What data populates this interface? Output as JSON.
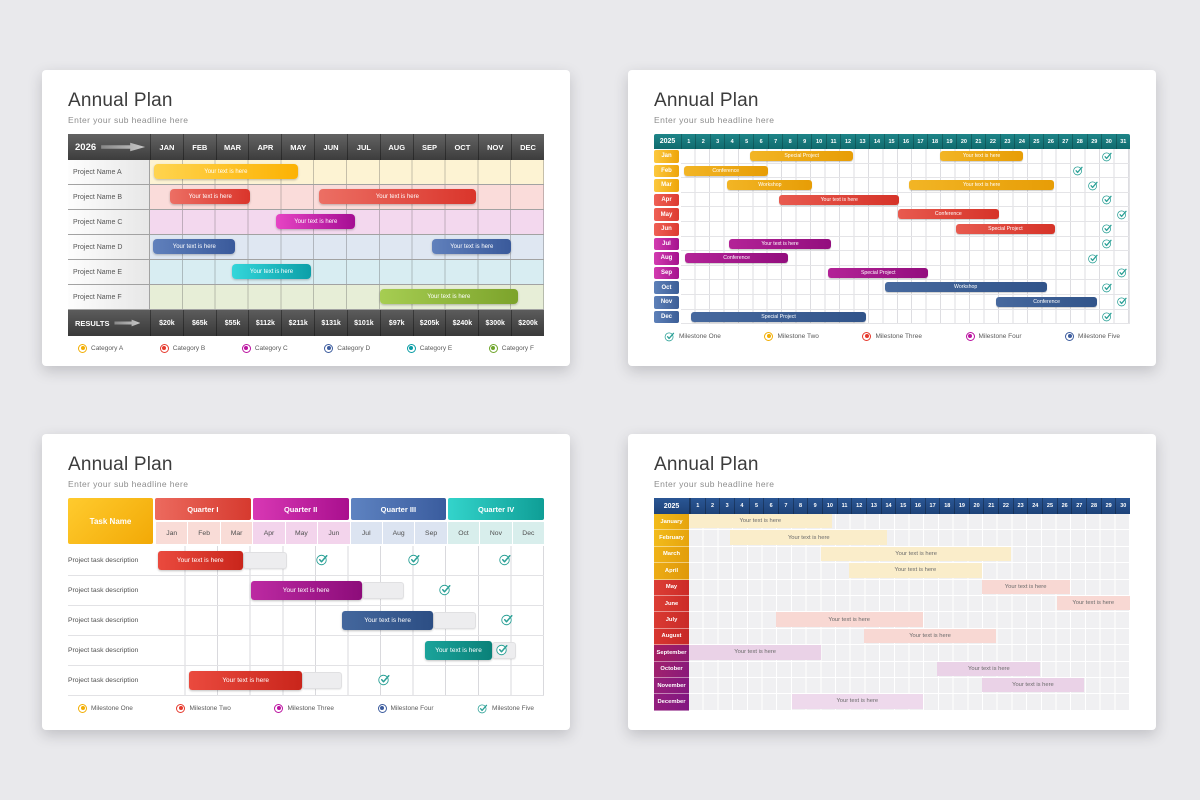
{
  "page": {
    "background": "#e9e9ec",
    "card_background": "#ffffff"
  },
  "icons": {
    "check_color": "#2aa096"
  },
  "chart_data": [
    {
      "type": "gantt",
      "variant": "monthly-projects",
      "title": "Annual Plan",
      "subtitle": "Enter your sub headline here",
      "year": "2026",
      "unit_count": 12,
      "x_units": [
        "JAN",
        "FEB",
        "MAR",
        "APR",
        "MAY",
        "JUN",
        "JUL",
        "AUG",
        "SEP",
        "OCT",
        "NOV",
        "DEC"
      ],
      "rows": [
        {
          "label": "Project Name A",
          "bg": "#fdf3d3",
          "bars": [
            {
              "text": "Your text is here",
              "start": 0.12,
              "end": 4.5,
              "c": [
                "#ffd44f",
                "#fcb203"
              ]
            }
          ]
        },
        {
          "label": "Project Name B",
          "bg": "#fadcda",
          "bars": [
            {
              "text": "Your text is here",
              "start": 0.62,
              "end": 3.05,
              "c": [
                "#ec6f64",
                "#da352b"
              ]
            },
            {
              "text": "Your text is here",
              "start": 5.15,
              "end": 9.92,
              "c": [
                "#ec6f64",
                "#da352b"
              ]
            }
          ]
        },
        {
          "label": "Project Name C",
          "bg": "#f3d8ee",
          "bars": [
            {
              "text": "Your text is here",
              "start": 3.85,
              "end": 6.25,
              "c": [
                "#e644c4",
                "#a50d93"
              ]
            }
          ]
        },
        {
          "label": "Project Name D",
          "bg": "#dfe7f2",
          "bars": [
            {
              "text": "Your text is here",
              "start": 0.1,
              "end": 2.6,
              "c": [
                "#6080bc",
                "#3a5a9b"
              ]
            },
            {
              "text": "Your text is here",
              "start": 8.6,
              "end": 11.0,
              "c": [
                "#6080bc",
                "#3a5a9b"
              ]
            }
          ]
        },
        {
          "label": "Project Name E",
          "bg": "#d8edf2",
          "bars": [
            {
              "text": "Your text is here",
              "start": 2.5,
              "end": 4.9,
              "c": [
                "#33d6da",
                "#0b9fa8"
              ]
            }
          ]
        },
        {
          "label": "Project Name F",
          "bg": "#e7eed7",
          "bars": [
            {
              "text": "Your text is here",
              "start": 7.0,
              "end": 11.2,
              "c": [
                "#a6cd52",
                "#7ca32b"
              ]
            }
          ]
        }
      ],
      "results": {
        "label": "RESULTS",
        "values": [
          "$20k",
          "$65k",
          "$55k",
          "$112k",
          "$211k",
          "$131k",
          "$101k",
          "$97k",
          "$205k",
          "$240k",
          "$300k",
          "$200k"
        ]
      },
      "legend": [
        {
          "label": "Category A",
          "icon": "dot",
          "color": "#f2ae04"
        },
        {
          "label": "Category B",
          "icon": "dot",
          "color": "#e63a2e"
        },
        {
          "label": "Category C",
          "icon": "dot",
          "color": "#bb12a0"
        },
        {
          "label": "Category D",
          "icon": "dot",
          "color": "#3c5c9e"
        },
        {
          "label": "Category E",
          "icon": "dot",
          "color": "#089ca4"
        },
        {
          "label": "Category F",
          "icon": "dot",
          "color": "#6fa52b"
        }
      ]
    },
    {
      "type": "gantt",
      "variant": "daily-31",
      "title": "Annual Plan",
      "subtitle": "Enter your sub headline here",
      "year": "2025",
      "unit_count": 31,
      "x_units": [
        "1",
        "2",
        "3",
        "4",
        "5",
        "6",
        "7",
        "8",
        "9",
        "10",
        "11",
        "12",
        "13",
        "14",
        "15",
        "16",
        "17",
        "18",
        "19",
        "20",
        "21",
        "22",
        "23",
        "24",
        "25",
        "26",
        "27",
        "28",
        "29",
        "30",
        "31"
      ],
      "rows": [
        {
          "label": "Jan",
          "lc": [
            "#fcc83e",
            "#eea50a"
          ],
          "bc": [
            "#f2b525",
            "#e79d06"
          ],
          "bars": [
            {
              "text": "Special Project",
              "start": 4.8,
              "end": 11.9
            },
            {
              "text": "Your text is here",
              "start": 17.9,
              "end": 23.7
            }
          ],
          "check_day": 30
        },
        {
          "label": "Feb",
          "lc": [
            "#fcc83e",
            "#eea50a"
          ],
          "bc": [
            "#f2b525",
            "#e79d06"
          ],
          "bars": [
            {
              "text": "Conference",
              "start": 0.2,
              "end": 6.0
            }
          ],
          "check_day": 28
        },
        {
          "label": "Mar",
          "lc": [
            "#fcc83e",
            "#eea50a"
          ],
          "bc": [
            "#f2b525",
            "#e79d06"
          ],
          "bars": [
            {
              "text": "Workshop",
              "start": 3.2,
              "end": 9.1
            },
            {
              "text": "Your text is here",
              "start": 15.8,
              "end": 25.8
            }
          ],
          "check_day": 29
        },
        {
          "label": "Apr",
          "lc": [
            "#ef6055",
            "#dd3b31"
          ],
          "bc": [
            "#e85a4f",
            "#d63328"
          ],
          "bars": [
            {
              "text": "Your text is here",
              "start": 6.8,
              "end": 15.1
            }
          ],
          "check_day": 30
        },
        {
          "label": "May",
          "lc": [
            "#ef6055",
            "#dd3b31"
          ],
          "bc": [
            "#e85a4f",
            "#d63328"
          ],
          "bars": [
            {
              "text": "Conference",
              "start": 15.0,
              "end": 22.0
            }
          ],
          "check_day": 31
        },
        {
          "label": "Jun",
          "lc": [
            "#ef6055",
            "#dd3b31"
          ],
          "bc": [
            "#e85a4f",
            "#d63328"
          ],
          "bars": [
            {
              "text": "Special Project",
              "start": 19.0,
              "end": 25.9
            }
          ],
          "check_day": 30
        },
        {
          "label": "Jul",
          "lc": [
            "#d23bb0",
            "#a5128e"
          ],
          "bc": [
            "#b32397",
            "#930e7e"
          ],
          "bars": [
            {
              "text": "Your text is here",
              "start": 3.3,
              "end": 10.4
            }
          ],
          "check_day": 30
        },
        {
          "label": "Aug",
          "lc": [
            "#d23bb0",
            "#a5128e"
          ],
          "bc": [
            "#b32397",
            "#930e7e"
          ],
          "bars": [
            {
              "text": "Conference",
              "start": 0.3,
              "end": 7.4
            }
          ],
          "check_day": 29
        },
        {
          "label": "Sep",
          "lc": [
            "#d23bb0",
            "#a5128e"
          ],
          "bc": [
            "#b32397",
            "#930e7e"
          ],
          "bars": [
            {
              "text": "Special Project",
              "start": 10.2,
              "end": 17.1
            }
          ],
          "check_day": 31
        },
        {
          "label": "Oct",
          "lc": [
            "#5d80b8",
            "#3c5e97"
          ],
          "bc": [
            "#47699e",
            "#31548a"
          ],
          "bars": [
            {
              "text": "Workshop",
              "start": 14.1,
              "end": 25.3
            }
          ],
          "check_day": 30
        },
        {
          "label": "Nov",
          "lc": [
            "#5d80b8",
            "#3c5e97"
          ],
          "bc": [
            "#47699e",
            "#31548a"
          ],
          "bars": [
            {
              "text": "Conference",
              "start": 21.8,
              "end": 28.8
            }
          ],
          "check_day": 31
        },
        {
          "label": "Dec",
          "lc": [
            "#5d80b8",
            "#3c5e97"
          ],
          "bc": [
            "#47699e",
            "#31548a"
          ],
          "bars": [
            {
              "text": "Special Project",
              "start": 0.7,
              "end": 12.8
            }
          ],
          "check_day": 30
        }
      ],
      "legend": [
        {
          "label": "Milestone One",
          "icon": "check",
          "color": "#2aa096"
        },
        {
          "label": "Milestone Two",
          "icon": "dot",
          "color": "#f2ae04"
        },
        {
          "label": "Milestone Three",
          "icon": "dot",
          "color": "#e63a2e"
        },
        {
          "label": "Milestone Four",
          "icon": "dot",
          "color": "#bb12a0"
        },
        {
          "label": "Milestone Five",
          "icon": "dot",
          "color": "#3c5c9e"
        }
      ]
    },
    {
      "type": "gantt",
      "variant": "quarterly-tasks",
      "title": "Annual Plan",
      "subtitle": "Enter your sub headline here",
      "task_col_label": "Task Name",
      "unit_count": 12,
      "quarters": [
        {
          "label": "Quarter I",
          "c": [
            "#ec6a5e",
            "#d63a2f"
          ],
          "sub_bg": "#f9dcd7",
          "months": [
            "Jan",
            "Feb",
            "Mar"
          ]
        },
        {
          "label": "Quarter II",
          "c": [
            "#d838b4",
            "#a90f8e"
          ],
          "sub_bg": "#f3d4ec",
          "months": [
            "Apr",
            "May",
            "Jun"
          ]
        },
        {
          "label": "Quarter III",
          "c": [
            "#5e83c1",
            "#3a5c9e"
          ],
          "sub_bg": "#dce4f1",
          "months": [
            "Jul",
            "Aug",
            "Sep"
          ]
        },
        {
          "label": "Quarter IV",
          "c": [
            "#33d4cb",
            "#0f9e96"
          ],
          "sub_bg": "#d8eeec",
          "months": [
            "Oct",
            "Nov",
            "Dec"
          ]
        }
      ],
      "rows": [
        {
          "label": "Project task description",
          "bar": {
            "text": "Your text is here",
            "start": 0.15,
            "end": 2.75,
            "c": [
              "#ea4a3e",
              "#c9251b"
            ]
          },
          "ghost": {
            "start": 2.75,
            "end": 4.1
          },
          "checks": [
            5.2,
            8.0,
            10.8
          ]
        },
        {
          "label": "Project task description",
          "bar": {
            "text": "Your text is here",
            "start": 3.0,
            "end": 6.4,
            "c": [
              "#bc2aa2",
              "#8d0c7a"
            ]
          },
          "ghost": {
            "start": 6.4,
            "end": 7.7
          },
          "checks": [
            8.95
          ]
        },
        {
          "label": "Project task description",
          "bar": {
            "text": "Your text is here",
            "start": 5.8,
            "end": 8.6,
            "c": [
              "#44679d",
              "#2c4e84"
            ]
          },
          "ghost": {
            "start": 8.6,
            "end": 9.9
          },
          "checks": [
            10.85
          ]
        },
        {
          "label": "Project task description",
          "bar": {
            "text": "Your text is here",
            "start": 8.35,
            "end": 10.4,
            "c": [
              "#1ba39a",
              "#0a8179"
            ]
          },
          "ghost": {
            "start": 10.4,
            "end": 11.15
          },
          "checks": [
            10.72
          ]
        },
        {
          "label": "Project task description",
          "bar": {
            "text": "Your text is here",
            "start": 1.12,
            "end": 4.57,
            "c": [
              "#ea4a3e",
              "#c9251b"
            ]
          },
          "ghost": {
            "start": 4.57,
            "end": 5.8
          },
          "checks": [
            7.1
          ]
        }
      ],
      "legend": [
        {
          "label": "Milestone One",
          "icon": "dot",
          "color": "#f2ae04"
        },
        {
          "label": "Milestone Two",
          "icon": "dot",
          "color": "#e63a2e"
        },
        {
          "label": "Milestone Three",
          "icon": "dot",
          "color": "#bb12a0"
        },
        {
          "label": "Milestone Four",
          "icon": "dot",
          "color": "#3c5c9e"
        },
        {
          "label": "Milestone Five",
          "icon": "check",
          "color": "#2aa096"
        }
      ]
    },
    {
      "type": "gantt",
      "variant": "daily-30",
      "title": "Annual Plan",
      "subtitle": "Enter your sub headline here",
      "year": "2025",
      "unit_count": 30,
      "x_units": [
        "1",
        "2",
        "3",
        "4",
        "5",
        "6",
        "7",
        "8",
        "9",
        "10",
        "11",
        "12",
        "13",
        "14",
        "15",
        "16",
        "17",
        "18",
        "19",
        "20",
        "21",
        "22",
        "23",
        "24",
        "25",
        "26",
        "27",
        "28",
        "29",
        "30"
      ],
      "rows": [
        {
          "label": "January",
          "lc": [
            "#f2bb1b",
            "#e6a40d"
          ],
          "bar": {
            "text": "Your text is here",
            "start": 0.0,
            "end": 9.7,
            "bg": "#faedca"
          }
        },
        {
          "label": "February",
          "lc": [
            "#f2bb1b",
            "#e6a40d"
          ],
          "bar": {
            "text": "Your text is here",
            "start": 2.8,
            "end": 13.5,
            "bg": "#faedca"
          }
        },
        {
          "label": "March",
          "lc": [
            "#efb217",
            "#e29e0b"
          ],
          "bar": {
            "text": "Your text is here",
            "start": 9.0,
            "end": 21.9,
            "bg": "#faedca"
          }
        },
        {
          "label": "April",
          "lc": [
            "#edac14",
            "#df9909"
          ],
          "bar": {
            "text": "Your text is here",
            "start": 10.9,
            "end": 19.9,
            "bg": "#faedca"
          }
        },
        {
          "label": "May",
          "lc": [
            "#dc3e35",
            "#cc2b28"
          ],
          "bar": {
            "text": "Your text is here",
            "start": 19.9,
            "end": 25.9,
            "bg": "#f8d8d3"
          }
        },
        {
          "label": "June",
          "lc": [
            "#dc3e35",
            "#cc2b28"
          ],
          "bar": {
            "text": "Your text is here",
            "start": 25.0,
            "end": 30.0,
            "bg": "#f8d8d3"
          }
        },
        {
          "label": "July",
          "lc": [
            "#da3a32",
            "#c92b28"
          ],
          "bar": {
            "text": "Your text is here",
            "start": 5.9,
            "end": 15.9,
            "bg": "#f8d8d3"
          }
        },
        {
          "label": "August",
          "lc": [
            "#d83630",
            "#c62927"
          ],
          "bar": {
            "text": "Your text is here",
            "start": 11.9,
            "end": 20.9,
            "bg": "#f8d8d3"
          }
        },
        {
          "label": "September",
          "lc": [
            "#a51d62",
            "#8f1a70"
          ],
          "bar": {
            "text": "Your text is here",
            "start": 0.0,
            "end": 9.0,
            "bg": "#ead2e7"
          }
        },
        {
          "label": "October",
          "lc": [
            "#a0216e",
            "#8a1a7a"
          ],
          "bar": {
            "text": "Your text is here",
            "start": 16.9,
            "end": 23.9,
            "bg": "#ead2e7"
          }
        },
        {
          "label": "November",
          "lc": [
            "#97207a",
            "#85187e"
          ],
          "bar": {
            "text": "Your text is here",
            "start": 19.9,
            "end": 26.9,
            "bg": "#ead2e7"
          }
        },
        {
          "label": "December",
          "lc": [
            "#931e7e",
            "#821680"
          ],
          "bar": {
            "text": "Your text is here",
            "start": 7.0,
            "end": 15.9,
            "bg": "#eed9ec"
          }
        }
      ]
    }
  ]
}
